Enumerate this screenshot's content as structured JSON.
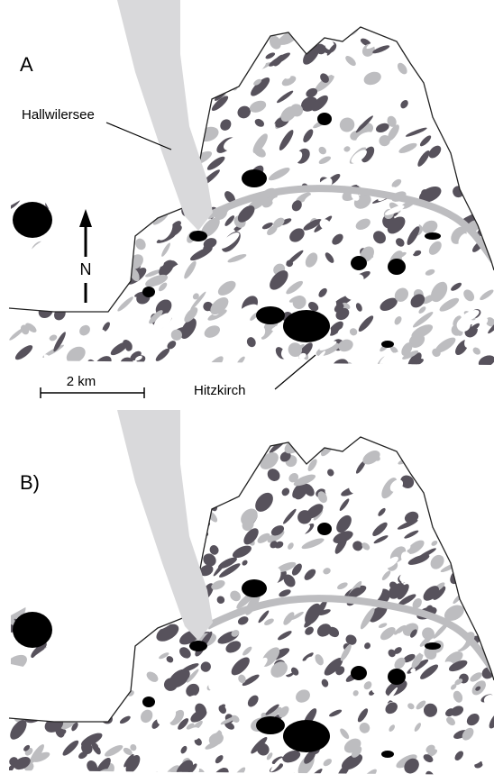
{
  "panel_a": {
    "label": "A",
    "lake_label": "Hallwilersee",
    "north_label": "N",
    "scale_label": "2 km",
    "town_label": "Hitzkirch"
  },
  "panel_b": {
    "label": "B)"
  }
}
